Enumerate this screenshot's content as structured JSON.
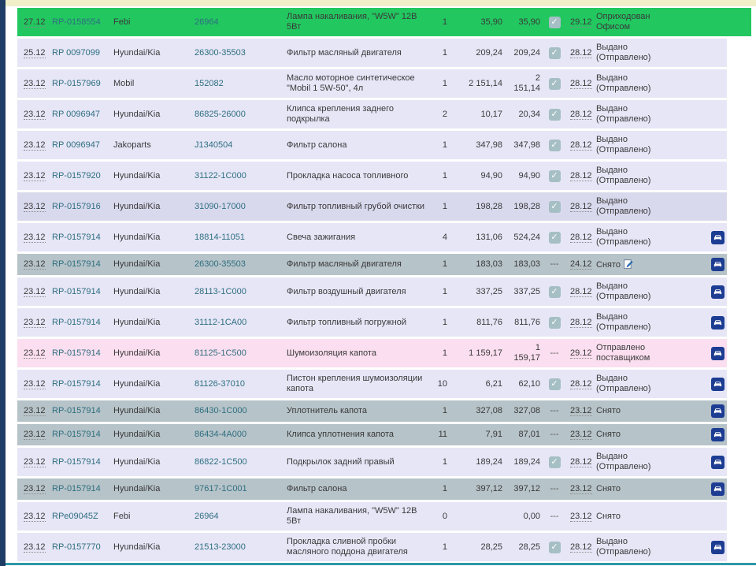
{
  "page": {
    "top_strip_color": "#f0efca",
    "left_border_color": "#1e3c64",
    "bottom_line_color": "#2e98a6",
    "highlight_green": "#22c760",
    "row_color": "#e6e6f7",
    "row_color_removed": "#b6c3c8",
    "row_color_supplier": "#fbdeef",
    "link_color": "#2f6f80"
  },
  "icons": {
    "checkbox_check": "✓",
    "dashes_label": "---",
    "car_icon": "car-icon",
    "edit_icon": "edit-icon"
  },
  "table": {
    "rows": [
      {
        "date": "27.12",
        "order": "RP-0158554",
        "brand": "Febi",
        "part": "26964",
        "desc": "Лампа накаливания, \"W5W\" 12В 5Вт",
        "qty": "1",
        "price": "35,90",
        "sum": "35,90",
        "check": "checked",
        "date2": "29.12",
        "status": "Оприходован Офисом",
        "edit": false,
        "car": false,
        "bg": "green",
        "wide": true
      },
      {
        "date": "25.12",
        "order": "RP 0097099",
        "brand": "Hyundai/Kia",
        "part": "26300-35503",
        "desc": "Фильтр масляный двигателя",
        "qty": "1",
        "price": "209,24",
        "sum": "209,24",
        "check": "checked",
        "date2": "28.12",
        "status": "Выдано (Отправлено)",
        "edit": false,
        "car": false,
        "bg": "lavender",
        "wide": false
      },
      {
        "date": "23.12",
        "order": "RP-0157969",
        "brand": "Mobil",
        "part": "152082",
        "desc": "Масло моторное синтетическое \"Mobil 1 5W-50\", 4л",
        "qty": "1",
        "price": "2 151,14",
        "sum": "2 151,14",
        "check": "checked",
        "date2": "28.12",
        "status": "Выдано (Отправлено)",
        "edit": false,
        "car": false,
        "bg": "lavender",
        "wide": false
      },
      {
        "date": "23.12",
        "order": "RP 0096947",
        "brand": "Hyundai/Kia",
        "part": "86825-26000",
        "desc": "Клипса крепления заднего подкрылка",
        "qty": "2",
        "price": "10,17",
        "sum": "20,34",
        "check": "checked",
        "date2": "28.12",
        "status": "Выдано (Отправлено)",
        "edit": false,
        "car": false,
        "bg": "lavender",
        "wide": false
      },
      {
        "date": "23.12",
        "order": "RP 0096947",
        "brand": "Jakoparts",
        "part": "J1340504",
        "desc": "Фильтр салона",
        "qty": "1",
        "price": "347,98",
        "sum": "347,98",
        "check": "checked",
        "date2": "28.12",
        "status": "Выдано (Отправлено)",
        "edit": false,
        "car": false,
        "bg": "lavender",
        "wide": false
      },
      {
        "date": "23.12",
        "order": "RP-0157920",
        "brand": "Hyundai/Kia",
        "part": "31122-1C000",
        "desc": "Прокладка насоса топливного",
        "qty": "1",
        "price": "94,90",
        "sum": "94,90",
        "check": "checked",
        "date2": "28.12",
        "status": "Выдано (Отправлено)",
        "edit": false,
        "car": false,
        "bg": "lavender",
        "wide": false
      },
      {
        "date": "23.12",
        "order": "RP-0157916",
        "brand": "Hyundai/Kia",
        "part": "31090-17000",
        "desc": "Фильтр топливный грубой очистки",
        "qty": "1",
        "price": "198,28",
        "sum": "198,28",
        "check": "checked",
        "date2": "28.12",
        "status": "Выдано (Отправлено)",
        "edit": false,
        "car": false,
        "bg": "lavender-dark",
        "wide": false
      },
      {
        "date": "23.12",
        "order": "RP-0157914",
        "brand": "Hyundai/Kia",
        "part": "18814-11051",
        "desc": "Свеча зажигания",
        "qty": "4",
        "price": "131,06",
        "sum": "524,24",
        "check": "checked",
        "date2": "28.12",
        "status": "Выдано (Отправлено)",
        "edit": false,
        "car": true,
        "bg": "lavender",
        "wide": false
      },
      {
        "date": "23.12",
        "order": "RP-0157914",
        "brand": "Hyundai/Kia",
        "part": "26300-35503",
        "desc": "Фильтр масляный двигателя",
        "qty": "1",
        "price": "183,03",
        "sum": "183,03",
        "check": "dashes",
        "date2": "24.12",
        "status": "Снято",
        "edit": true,
        "car": true,
        "bg": "grayblue",
        "wide": false
      },
      {
        "date": "23.12",
        "order": "RP-0157914",
        "brand": "Hyundai/Kia",
        "part": "28113-1C000",
        "desc": "Фильтр воздушный двигателя",
        "qty": "1",
        "price": "337,25",
        "sum": "337,25",
        "check": "checked",
        "date2": "28.12",
        "status": "Выдано (Отправлено)",
        "edit": false,
        "car": true,
        "bg": "lavender",
        "wide": false
      },
      {
        "date": "23.12",
        "order": "RP-0157914",
        "brand": "Hyundai/Kia",
        "part": "31112-1CA00",
        "desc": "Фильтр топливный погружной",
        "qty": "1",
        "price": "811,76",
        "sum": "811,76",
        "check": "checked",
        "date2": "28.12",
        "status": "Выдано (Отправлено)",
        "edit": false,
        "car": true,
        "bg": "lavender",
        "wide": false
      },
      {
        "date": "23.12",
        "order": "RP-0157914",
        "brand": "Hyundai/Kia",
        "part": "81125-1C500",
        "desc": "Шумоизоляция капота",
        "qty": "1",
        "price": "1 159,17",
        "sum": "1 159,17",
        "check": "dashes",
        "date2": "29.12",
        "status": "Отправлено поставщиком",
        "edit": false,
        "car": true,
        "bg": "pink",
        "wide": false
      },
      {
        "date": "23.12",
        "order": "RP-0157914",
        "brand": "Hyundai/Kia",
        "part": "81126-37010",
        "desc": "Пистон крепления шумоизоляции капота",
        "qty": "10",
        "price": "6,21",
        "sum": "62,10",
        "check": "checked",
        "date2": "28.12",
        "status": "Выдано (Отправлено)",
        "edit": false,
        "car": true,
        "bg": "lavender",
        "wide": false
      },
      {
        "date": "23.12",
        "order": "RP-0157914",
        "brand": "Hyundai/Kia",
        "part": "86430-1C000",
        "desc": "Уплотнитель капота",
        "qty": "1",
        "price": "327,08",
        "sum": "327,08",
        "check": "dashes",
        "date2": "23.12",
        "status": "Снято",
        "edit": false,
        "car": true,
        "bg": "grayblue",
        "wide": false
      },
      {
        "date": "23.12",
        "order": "RP-0157914",
        "brand": "Hyundai/Kia",
        "part": "86434-4A000",
        "desc": "Клипса уплотнения капота",
        "qty": "11",
        "price": "7,91",
        "sum": "87,01",
        "check": "dashes",
        "date2": "23.12",
        "status": "Снято",
        "edit": false,
        "car": true,
        "bg": "grayblue",
        "wide": false
      },
      {
        "date": "23.12",
        "order": "RP-0157914",
        "brand": "Hyundai/Kia",
        "part": "86822-1C500",
        "desc": "Подкрылок задний правый",
        "qty": "1",
        "price": "189,24",
        "sum": "189,24",
        "check": "checked",
        "date2": "28.12",
        "status": "Выдано (Отправлено)",
        "edit": false,
        "car": true,
        "bg": "lavender",
        "wide": false
      },
      {
        "date": "23.12",
        "order": "RP-0157914",
        "brand": "Hyundai/Kia",
        "part": "97617-1C001",
        "desc": "Фильтр салона",
        "qty": "1",
        "price": "397,12",
        "sum": "397,12",
        "check": "dashes",
        "date2": "23.12",
        "status": "Снято",
        "edit": false,
        "car": true,
        "bg": "grayblue",
        "wide": false
      },
      {
        "date": "23.12",
        "order": "RPe09045Z",
        "brand": "Febi",
        "part": "26964",
        "desc": "Лампа накаливания, \"W5W\" 12В 5Вт",
        "qty": "0",
        "price": "",
        "sum": "0,00",
        "check": "dashes",
        "date2": "23.12",
        "status": "Снято",
        "edit": false,
        "car": false,
        "bg": "lavender",
        "wide": false
      },
      {
        "date": "23.12",
        "order": "RP-0157770",
        "brand": "Hyundai/Kia",
        "part": "21513-23000",
        "desc": "Прокладка сливной пробки масляного поддона двигателя",
        "qty": "1",
        "price": "28,25",
        "sum": "28,25",
        "check": "checked",
        "date2": "28.12",
        "status": "Выдано (Отправлено)",
        "edit": false,
        "car": true,
        "bg": "lavender",
        "wide": false
      }
    ]
  }
}
